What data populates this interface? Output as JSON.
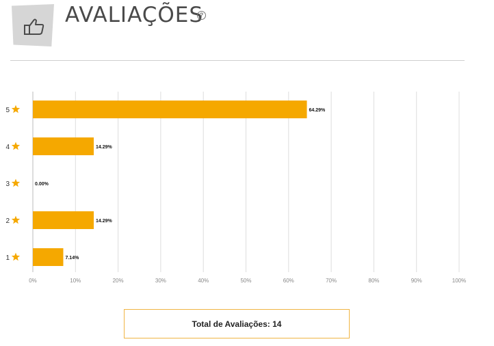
{
  "header": {
    "title": "AVALIAÇÕES",
    "help_glyph": "?",
    "icon": "thumbs-up-icon"
  },
  "chart_data": {
    "type": "bar",
    "orientation": "horizontal",
    "categories": [
      "5",
      "4",
      "3",
      "2",
      "1"
    ],
    "category_icon": "star-icon",
    "values": [
      64.29,
      14.29,
      0.0,
      14.29,
      7.14
    ],
    "data_labels": [
      "64.29%",
      "14.29%",
      "0.00%",
      "14.29%",
      "7.14%"
    ],
    "x_ticks": [
      "0%",
      "10%",
      "20%",
      "30%",
      "40%",
      "50%",
      "60%",
      "70%",
      "80%",
      "90%",
      "100%"
    ],
    "xlim": [
      0,
      100
    ],
    "grid": true,
    "colors": {
      "bar": "#f5a800",
      "star": "#f5a800",
      "grid": "#dddddd"
    }
  },
  "footer": {
    "total_label": "Total de Avaliações: 14"
  }
}
